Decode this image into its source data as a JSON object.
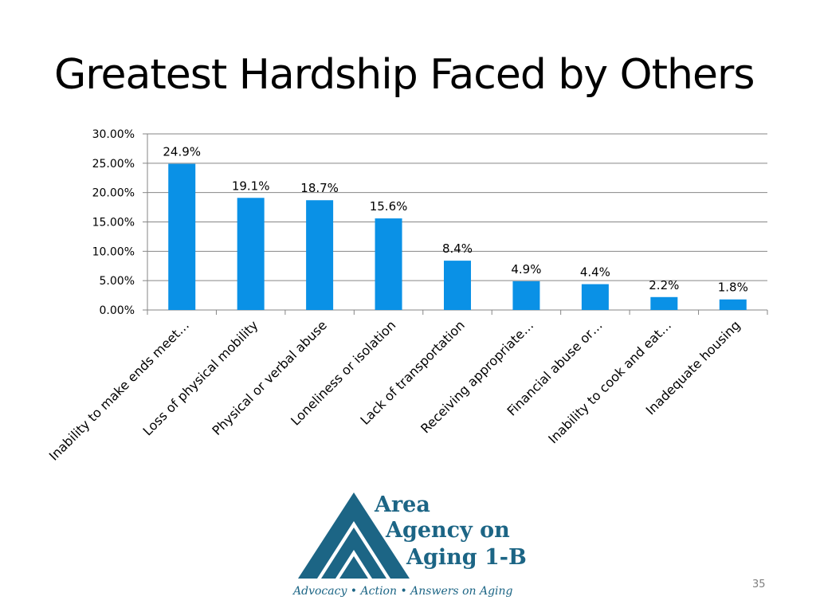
{
  "slide": {
    "title": "Greatest Hardship Faced by Others",
    "page_number": "35"
  },
  "logo": {
    "line1": "Area",
    "line2": "Agency on",
    "line3": "Aging 1-B",
    "tagline": "Advocacy • Action • Answers on Aging",
    "color": "#1c6585"
  },
  "chart_data": {
    "type": "bar",
    "title": "",
    "xlabel": "",
    "ylabel": "",
    "categories": [
      "Inability to make ends meet…",
      "Loss of physical mobility",
      "Physical or verbal abuse",
      "Loneliness or isolation",
      "Lack of transportation",
      "Receiving appropriate…",
      "Financial abuse or…",
      "Inability to cook and eat…",
      "Inadequate housing"
    ],
    "values": [
      24.9,
      19.1,
      18.7,
      15.6,
      8.4,
      4.9,
      4.4,
      2.2,
      1.8
    ],
    "data_labels": [
      "24.9%",
      "19.1%",
      "18.7%",
      "15.6%",
      "8.4%",
      "4.9%",
      "4.4%",
      "2.2%",
      "1.8%"
    ],
    "yticks": [
      "0.00%",
      "5.00%",
      "10.00%",
      "15.00%",
      "20.00%",
      "25.00%",
      "30.00%"
    ],
    "ylim": [
      0,
      30
    ],
    "grid": true,
    "legend": "none",
    "bar_color": "#0a91e6"
  }
}
